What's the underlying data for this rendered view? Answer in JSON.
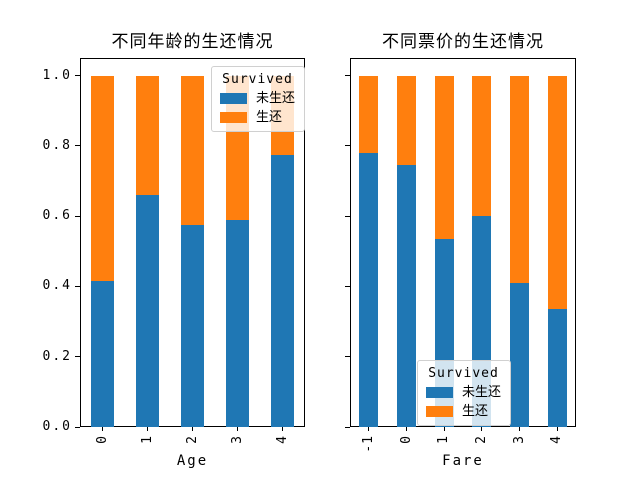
{
  "colors": {
    "not_survived": "#1f77b4",
    "survived": "#ff7f0e",
    "axis": "#000000"
  },
  "legend": {
    "title": "Survived",
    "entries": [
      {
        "label": "未生还",
        "key": "not_survived"
      },
      {
        "label": "生还",
        "key": "survived"
      }
    ]
  },
  "chart_data": [
    {
      "type": "bar",
      "stacked": true,
      "title": "不同年龄的生还情况",
      "xlabel": "Age",
      "ylabel": "",
      "categories": [
        "0",
        "1",
        "2",
        "3",
        "4"
      ],
      "series": [
        {
          "name": "未生还",
          "color": "#1f77b4",
          "values": [
            0.415,
            0.66,
            0.575,
            0.59,
            0.775
          ]
        },
        {
          "name": "生还",
          "color": "#ff7f0e",
          "values": [
            0.585,
            0.34,
            0.425,
            0.41,
            0.225
          ]
        }
      ],
      "yticks": [
        0.0,
        0.2,
        0.4,
        0.6,
        0.8,
        1.0
      ],
      "ytick_labels": [
        "0.0",
        "0.2",
        "0.4",
        "0.6",
        "0.8",
        "1.0"
      ],
      "show_ytick_labels": true,
      "ylim": [
        0,
        1.05
      ],
      "grid": false,
      "legend_position": "upper right"
    },
    {
      "type": "bar",
      "stacked": true,
      "title": "不同票价的生还情况",
      "xlabel": "Fare",
      "ylabel": "",
      "categories": [
        "-1",
        "0",
        "1",
        "2",
        "3",
        "4"
      ],
      "series": [
        {
          "name": "未生还",
          "color": "#1f77b4",
          "values": [
            0.78,
            0.745,
            0.535,
            0.6,
            0.41,
            0.335
          ]
        },
        {
          "name": "生还",
          "color": "#ff7f0e",
          "values": [
            0.22,
            0.255,
            0.465,
            0.4,
            0.59,
            0.665
          ]
        }
      ],
      "yticks": [
        0.0,
        0.2,
        0.4,
        0.6,
        0.8,
        1.0
      ],
      "ytick_labels": [
        "0.0",
        "0.2",
        "0.4",
        "0.6",
        "0.8",
        "1.0"
      ],
      "show_ytick_labels": false,
      "ylim": [
        0,
        1.05
      ],
      "grid": false,
      "legend_position": "lower center"
    }
  ]
}
